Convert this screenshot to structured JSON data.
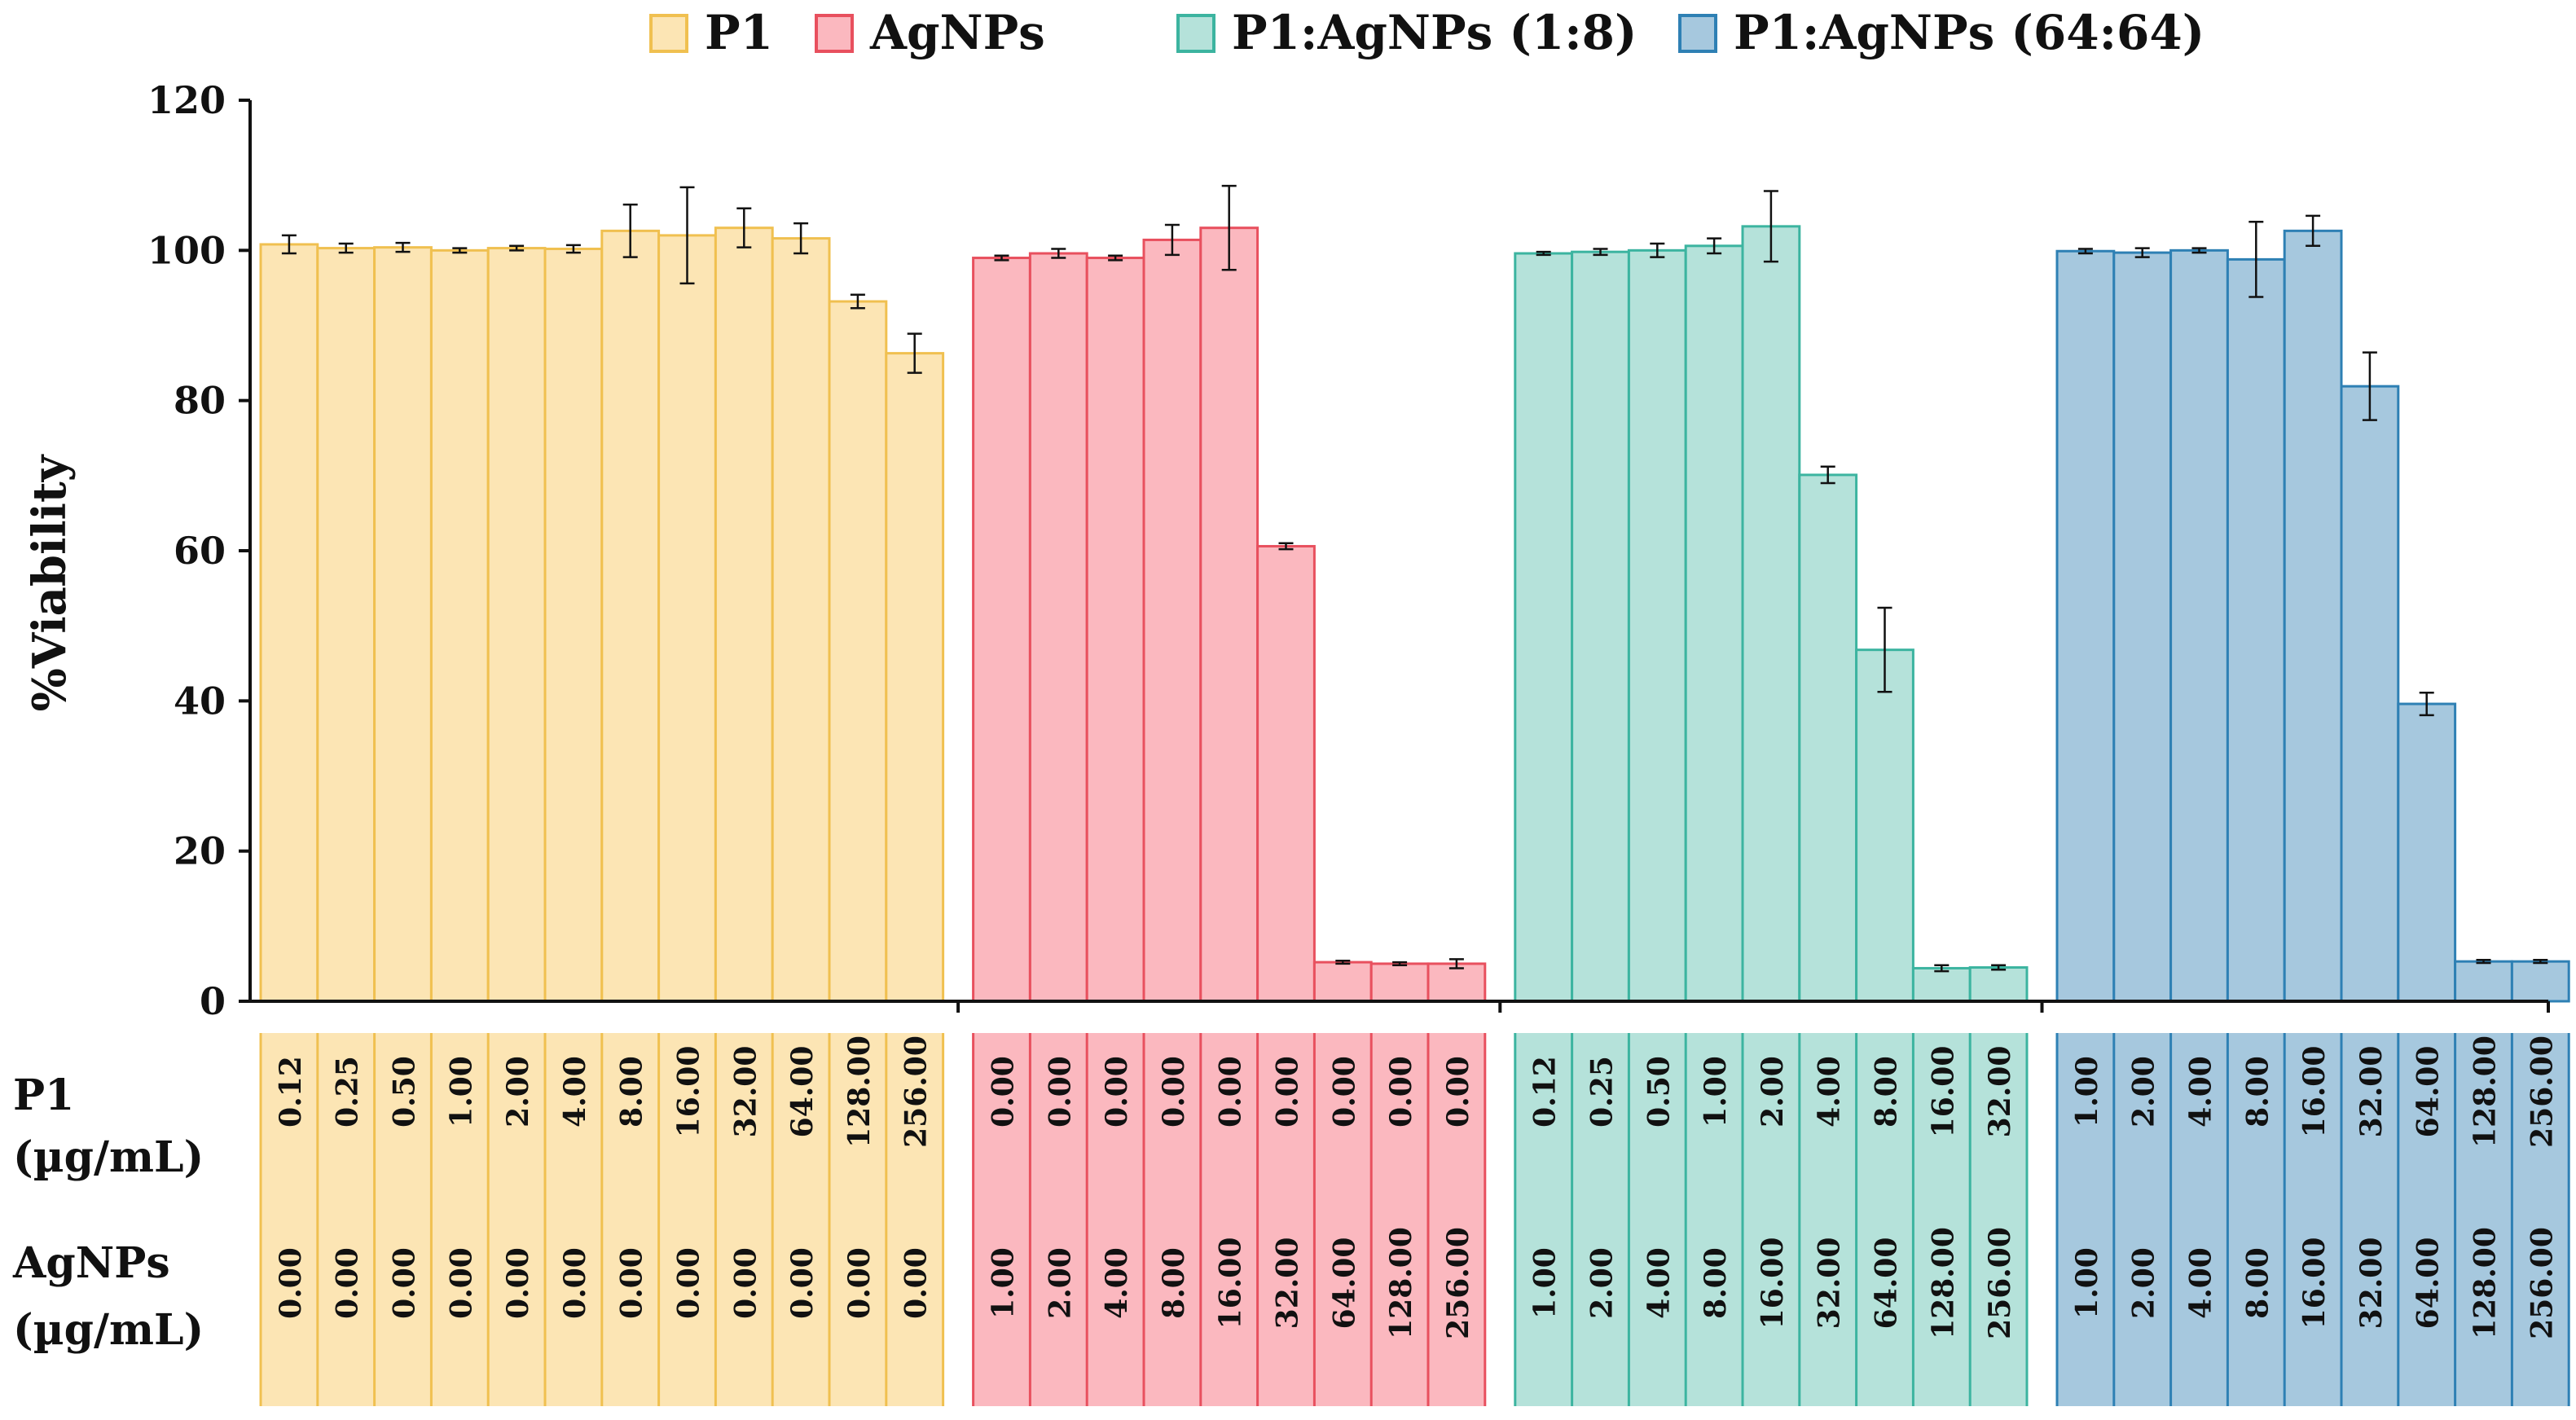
{
  "chart_data": {
    "type": "bar",
    "title": "",
    "ylabel": "%Viability",
    "xlabel": "",
    "ylim": [
      0,
      120
    ],
    "yticks": [
      0,
      20,
      40,
      60,
      80,
      100,
      120
    ],
    "grid": false,
    "legend_position": "top-center",
    "row_labels": {
      "p1_line1": "P1",
      "p1_line2": "(µg/mL)",
      "ag_line1": "AgNPs",
      "ag_line2": "(µg/mL)"
    },
    "series": [
      {
        "name": "P1",
        "color": "#f0c050",
        "fill": "#fce5b4",
        "values": [
          100.8,
          100.3,
          100.4,
          100.0,
          100.3,
          100.2,
          102.6,
          102.0,
          103.0,
          101.6,
          93.2,
          86.3
        ],
        "errors": [
          1.2,
          0.6,
          0.6,
          0.3,
          0.3,
          0.5,
          3.5,
          6.4,
          2.6,
          2.0,
          0.9,
          2.6
        ],
        "p1_conc": [
          "0.12",
          "0.25",
          "0.50",
          "1.00",
          "2.00",
          "4.00",
          "8.00",
          "16.00",
          "32.00",
          "64.00",
          "128.00",
          "256.00"
        ],
        "agnps_conc": [
          "0.00",
          "0.00",
          "0.00",
          "0.00",
          "0.00",
          "0.00",
          "0.00",
          "0.00",
          "0.00",
          "0.00",
          "0.00",
          "0.00"
        ]
      },
      {
        "name": "AgNPs",
        "color": "#e8505e",
        "fill": "#fbb8bf",
        "values": [
          99.0,
          99.6,
          99.0,
          101.4,
          103.0,
          60.6,
          5.2,
          5.0,
          5.0
        ],
        "errors": [
          0.3,
          0.6,
          0.3,
          2.0,
          5.6,
          0.4,
          0.2,
          0.2,
          0.6
        ],
        "p1_conc": [
          "0.00",
          "0.00",
          "0.00",
          "0.00",
          "0.00",
          "0.00",
          "0.00",
          "0.00",
          "0.00"
        ],
        "agnps_conc": [
          "1.00",
          "2.00",
          "4.00",
          "8.00",
          "16.00",
          "32.00",
          "64.00",
          "128.00",
          "256.00"
        ]
      },
      {
        "name": "P1:AgNPs (1:8)",
        "color": "#3cb4a0",
        "fill": "#b5e2da",
        "values": [
          99.6,
          99.8,
          100.0,
          100.6,
          103.2,
          70.1,
          46.8,
          4.4,
          4.5
        ],
        "errors": [
          0.2,
          0.4,
          0.9,
          1.0,
          4.7,
          1.1,
          5.6,
          0.4,
          0.3
        ],
        "p1_conc": [
          "0.12",
          "0.25",
          "0.50",
          "1.00",
          "2.00",
          "4.00",
          "8.00",
          "16.00",
          "32.00"
        ],
        "agnps_conc": [
          "1.00",
          "2.00",
          "4.00",
          "8.00",
          "16.00",
          "32.00",
          "64.00",
          "128.00",
          "256.00"
        ]
      },
      {
        "name": "P1:AgNPs (64:64)",
        "color": "#2e80b4",
        "fill": "#a6c8de",
        "values": [
          99.9,
          99.7,
          100.0,
          98.8,
          102.6,
          81.9,
          39.6,
          5.3,
          5.3
        ],
        "errors": [
          0.3,
          0.6,
          0.3,
          5.0,
          2.0,
          4.5,
          1.5,
          0.2,
          0.2
        ],
        "p1_conc": [
          "1.00",
          "2.00",
          "4.00",
          "8.00",
          "16.00",
          "32.00",
          "64.00",
          "128.00",
          "256.00"
        ],
        "agnps_conc": [
          "1.00",
          "2.00",
          "4.00",
          "8.00",
          "16.00",
          "32.00",
          "64.00",
          "128.00",
          "256.00"
        ]
      }
    ]
  }
}
